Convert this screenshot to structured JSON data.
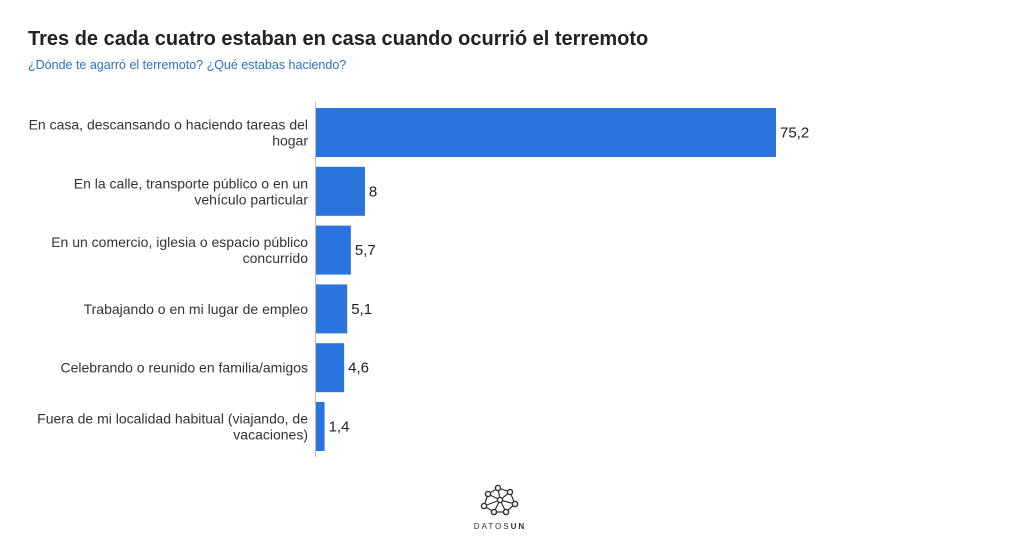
{
  "header": {
    "title": "Tres de cada cuatro estaban en casa cuando ocurrió el terremoto",
    "subtitle": "¿Dónde te agarró el terremoto? ¿Qué estabas haciendo?"
  },
  "brand": {
    "name_light": "DATOS",
    "name_bold": "UN",
    "icon": "network-logo-icon"
  },
  "colors": {
    "bar": "#2b74dd",
    "subtitle": "#2a6fc9"
  },
  "chart_data": {
    "type": "bar",
    "orientation": "horizontal",
    "categories": [
      [
        "En casa, descansando o haciendo tareas del",
        "hogar"
      ],
      [
        "En la calle, transporte público o en un",
        "vehículo particular"
      ],
      [
        "En un comercio, iglesia o espacio público",
        "concurrido"
      ],
      [
        "Trabajando o en mi lugar de empleo"
      ],
      [
        "Celebrando o reunido en familia/amigos"
      ],
      [
        "Fuera de mi localidad habitual (viajando, de",
        "vacaciones)"
      ]
    ],
    "values": [
      75.2,
      8,
      5.7,
      5.1,
      4.6,
      1.4
    ],
    "value_labels": [
      "75,2",
      "8",
      "5,7",
      "5,1",
      "4,6",
      "1,4"
    ],
    "xlim": [
      0,
      80
    ],
    "grid": false,
    "legend": "none"
  }
}
